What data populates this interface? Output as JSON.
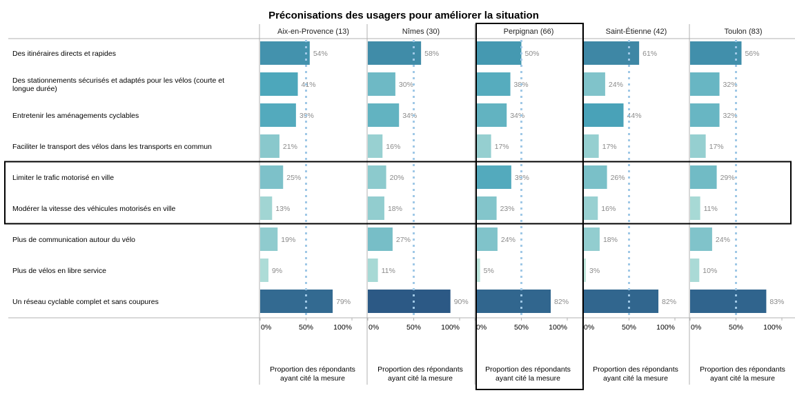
{
  "chart_data": {
    "type": "bar",
    "orientation": "horizontal",
    "title": "Préconisations des usagers pour améliorer la situation",
    "categories": [
      "Des itinéraires directs et rapides",
      "Des stationnements sécurisés et adaptés pour les vélos (courte et longue durée)",
      "Entretenir les aménagements cyclables",
      "Faciliter le transport des vélos dans les transports en commun",
      "Limiter le trafic motorisé en ville",
      "Modérer la vitesse des véhicules motorisés en ville",
      "Plus de communication autour du vélo",
      "Plus de vélos en libre service",
      "Un réseau cyclable complet et sans coupures"
    ],
    "series": [
      {
        "name": "Aix-en-Provence (13)",
        "values": [
          54,
          41,
          39,
          21,
          25,
          13,
          19,
          9,
          79
        ]
      },
      {
        "name": "Nîmes (30)",
        "values": [
          58,
          30,
          34,
          16,
          20,
          18,
          27,
          11,
          90
        ]
      },
      {
        "name": "Perpignan (66)",
        "values": [
          50,
          38,
          34,
          17,
          39,
          23,
          24,
          5,
          82
        ],
        "highlighted": true
      },
      {
        "name": "Saint-Étienne (42)",
        "values": [
          61,
          24,
          44,
          17,
          26,
          16,
          18,
          3,
          82
        ]
      },
      {
        "name": "Toulon (83)",
        "values": [
          56,
          32,
          32,
          17,
          29,
          11,
          24,
          10,
          83
        ]
      }
    ],
    "value_suffix": "%",
    "xlim": [
      0,
      100
    ],
    "xticks": [
      "0%",
      "50%",
      "100%"
    ],
    "reference_line": {
      "value": 50,
      "style": "dotted",
      "color": "#9fc8e6"
    },
    "xlabel": [
      "Proportion des répondants",
      "ayant cité la mesure"
    ],
    "highlighted_rows": [
      "Limiter le trafic motorisé en ville",
      "Modérer la vitesse des véhicules motorisés en ville"
    ],
    "color_scale": {
      "low": "#bfe6dc",
      "mid": "#4aa5ba",
      "high": "#2c5985"
    },
    "grid": false,
    "legend": "none"
  }
}
